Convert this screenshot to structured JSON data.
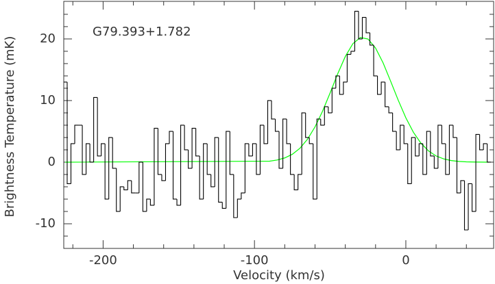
{
  "chart_data": {
    "type": "step",
    "annotation": "G79.393+1.782",
    "xlabel": "Velocity (km/s)",
    "ylabel": "Brightness Temperature (mK)",
    "xlim": [
      -226,
      58
    ],
    "ylim": [
      -14,
      26.1
    ],
    "xticks": [
      -200,
      -100,
      0
    ],
    "yticks": [
      -10,
      0,
      10,
      20
    ],
    "xminorticks": [
      -220,
      -180,
      -160,
      -140,
      -120,
      -80,
      -60,
      -40,
      -20,
      20,
      40
    ],
    "yminorticks": [
      -12,
      -8,
      -6,
      -4,
      -2,
      2,
      4,
      6,
      8,
      12,
      14,
      16,
      18,
      22,
      24
    ],
    "channel_width": 2.5,
    "series": [
      {
        "color": "#000000",
        "x": [
          -225,
          -222.5,
          -220,
          -217.5,
          -215,
          -212.5,
          -210,
          -207.5,
          -205,
          -202.5,
          -200,
          -197.5,
          -195,
          -192.5,
          -190,
          -187.5,
          -185,
          -182.5,
          -180,
          -177.5,
          -175,
          -172.5,
          -170,
          -167.5,
          -165,
          -162.5,
          -160,
          -157.5,
          -155,
          -152.5,
          -150,
          -147.5,
          -145,
          -142.5,
          -140,
          -137.5,
          -135,
          -132.5,
          -130,
          -127.5,
          -125,
          -122.5,
          -120,
          -117.5,
          -115,
          -112.5,
          -110,
          -107.5,
          -105,
          -102.5,
          -100,
          -97.5,
          -95,
          -92.5,
          -90,
          -87.5,
          -85,
          -82.5,
          -80,
          -77.5,
          -75,
          -72.5,
          -70,
          -67.5,
          -65,
          -62.5,
          -60,
          -57.5,
          -55,
          -52.5,
          -50,
          -47.5,
          -45,
          -42.5,
          -40,
          -37.5,
          -35,
          -32.5,
          -30,
          -27.5,
          -25,
          -22.5,
          -20,
          -17.5,
          -15,
          -12.5,
          -10,
          -7.5,
          -5,
          -2.5,
          0,
          2.5,
          5,
          7.5,
          10,
          12.5,
          15,
          17.5,
          20,
          22.5,
          25,
          27.5,
          30,
          32.5,
          35,
          37.5,
          40,
          42.5,
          45,
          47.5,
          50,
          52.5,
          55
        ],
        "values": [
          13,
          -3.5,
          3,
          6,
          6,
          -2,
          3,
          0,
          10.5,
          1,
          3,
          -6,
          4,
          -1,
          -8,
          -4,
          -4.5,
          -3,
          -5,
          -5,
          0,
          -8,
          -6,
          -7,
          5.5,
          -2,
          -3,
          3,
          5,
          -6,
          -7,
          6,
          2,
          -1,
          5.5,
          1,
          -6,
          3,
          -2,
          -4,
          4,
          -6.5,
          -7.5,
          5,
          -2,
          -9,
          -6,
          -5,
          3,
          1,
          3,
          -2,
          6,
          3,
          10,
          7,
          5,
          -1,
          7,
          3,
          -2,
          -4.5,
          -2,
          8,
          4,
          3,
          -6,
          7,
          6,
          9,
          8,
          12,
          14,
          11,
          13,
          17.5,
          18,
          24.5,
          20,
          23.5,
          21,
          19,
          14,
          11,
          13,
          9,
          8,
          5,
          2,
          6,
          3,
          -3.5,
          4,
          1,
          3,
          -2,
          5,
          1,
          -1,
          6,
          3,
          -2,
          6,
          4,
          -5,
          -3,
          -11,
          -3.5,
          -8,
          4.5,
          2,
          3,
          0
        ]
      },
      {
        "color": "#00ff00",
        "x": [
          -225,
          -90,
          -85,
          -80,
          -75,
          -70,
          -65,
          -60,
          -55,
          -50,
          -45,
          -40,
          -35,
          -30,
          -25,
          -20,
          -15,
          -10,
          -5,
          0,
          5,
          10,
          15,
          20,
          25,
          30,
          35,
          40,
          45,
          50,
          55
        ],
        "values": [
          0,
          0.16,
          0.35,
          0.69,
          1.28,
          2.25,
          3.71,
          5.73,
          8.29,
          11.26,
          14.35,
          17.15,
          19.23,
          20.24,
          19.99,
          18.52,
          16.1,
          13.11,
          10.04,
          7.2,
          4.85,
          3.07,
          1.82,
          1.01,
          0.53,
          0.26,
          0.12,
          0.05,
          0.02,
          0.01,
          0
        ]
      }
    ]
  }
}
